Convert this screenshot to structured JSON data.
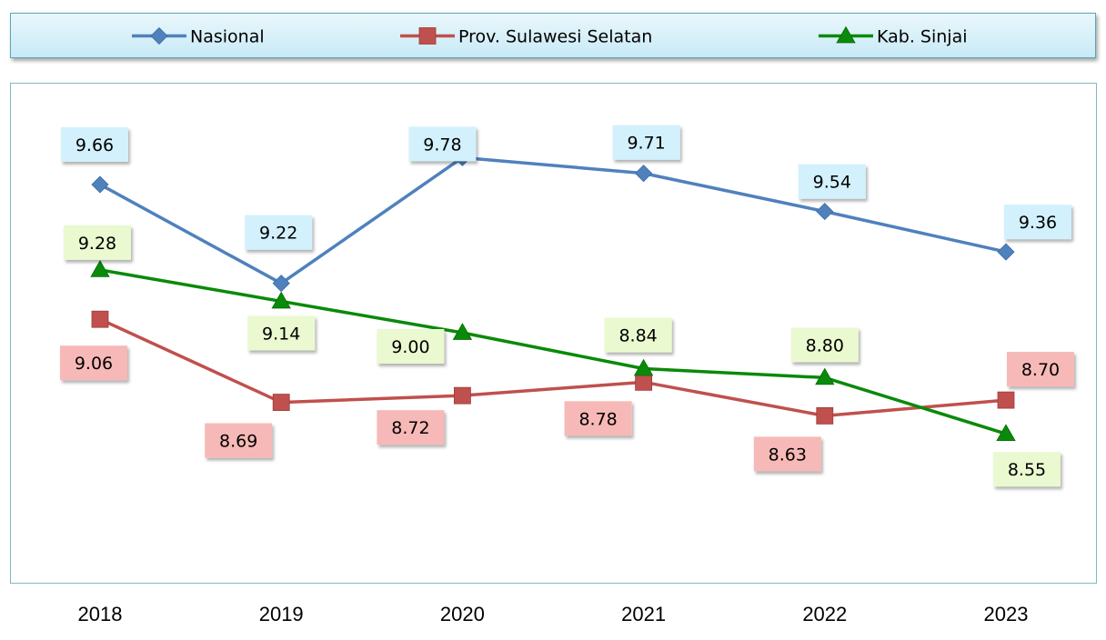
{
  "chart_data": {
    "type": "line",
    "title": "",
    "xlabel": "",
    "ylabel": "",
    "categories": [
      "2018",
      "2019",
      "2020",
      "2021",
      "2022",
      "2023"
    ],
    "series": [
      {
        "name": "Nasional",
        "color": "#4f81bd",
        "marker": "diamond",
        "values": [
          9.66,
          9.22,
          9.78,
          9.71,
          9.54,
          9.36
        ],
        "labels": [
          "9.66",
          "9.22",
          "9.78",
          "9.71",
          "9.54",
          "9.36"
        ],
        "label_fill": "#d2f1fd"
      },
      {
        "name": "Prov. Sulawesi Selatan",
        "color": "#c0504d",
        "marker": "square",
        "values": [
          9.06,
          8.69,
          8.72,
          8.78,
          8.63,
          8.7
        ],
        "labels": [
          "9.06",
          "8.69",
          "8.72",
          "8.78",
          "8.63",
          "8.70"
        ],
        "label_fill": "#f7b9b7"
      },
      {
        "name": "Kab. Sinjai",
        "color": "#0a8a0a",
        "marker": "triangle",
        "values": [
          9.28,
          9.14,
          9.0,
          8.84,
          8.8,
          8.55
        ],
        "labels": [
          "9.28",
          "9.14",
          "9.00",
          "8.84",
          "8.80",
          "8.55"
        ],
        "label_fill": "#eaf9d0"
      }
    ],
    "ylim": [
      8.2,
      10.2
    ],
    "grid": false,
    "legend": "top",
    "data_labels": true
  }
}
